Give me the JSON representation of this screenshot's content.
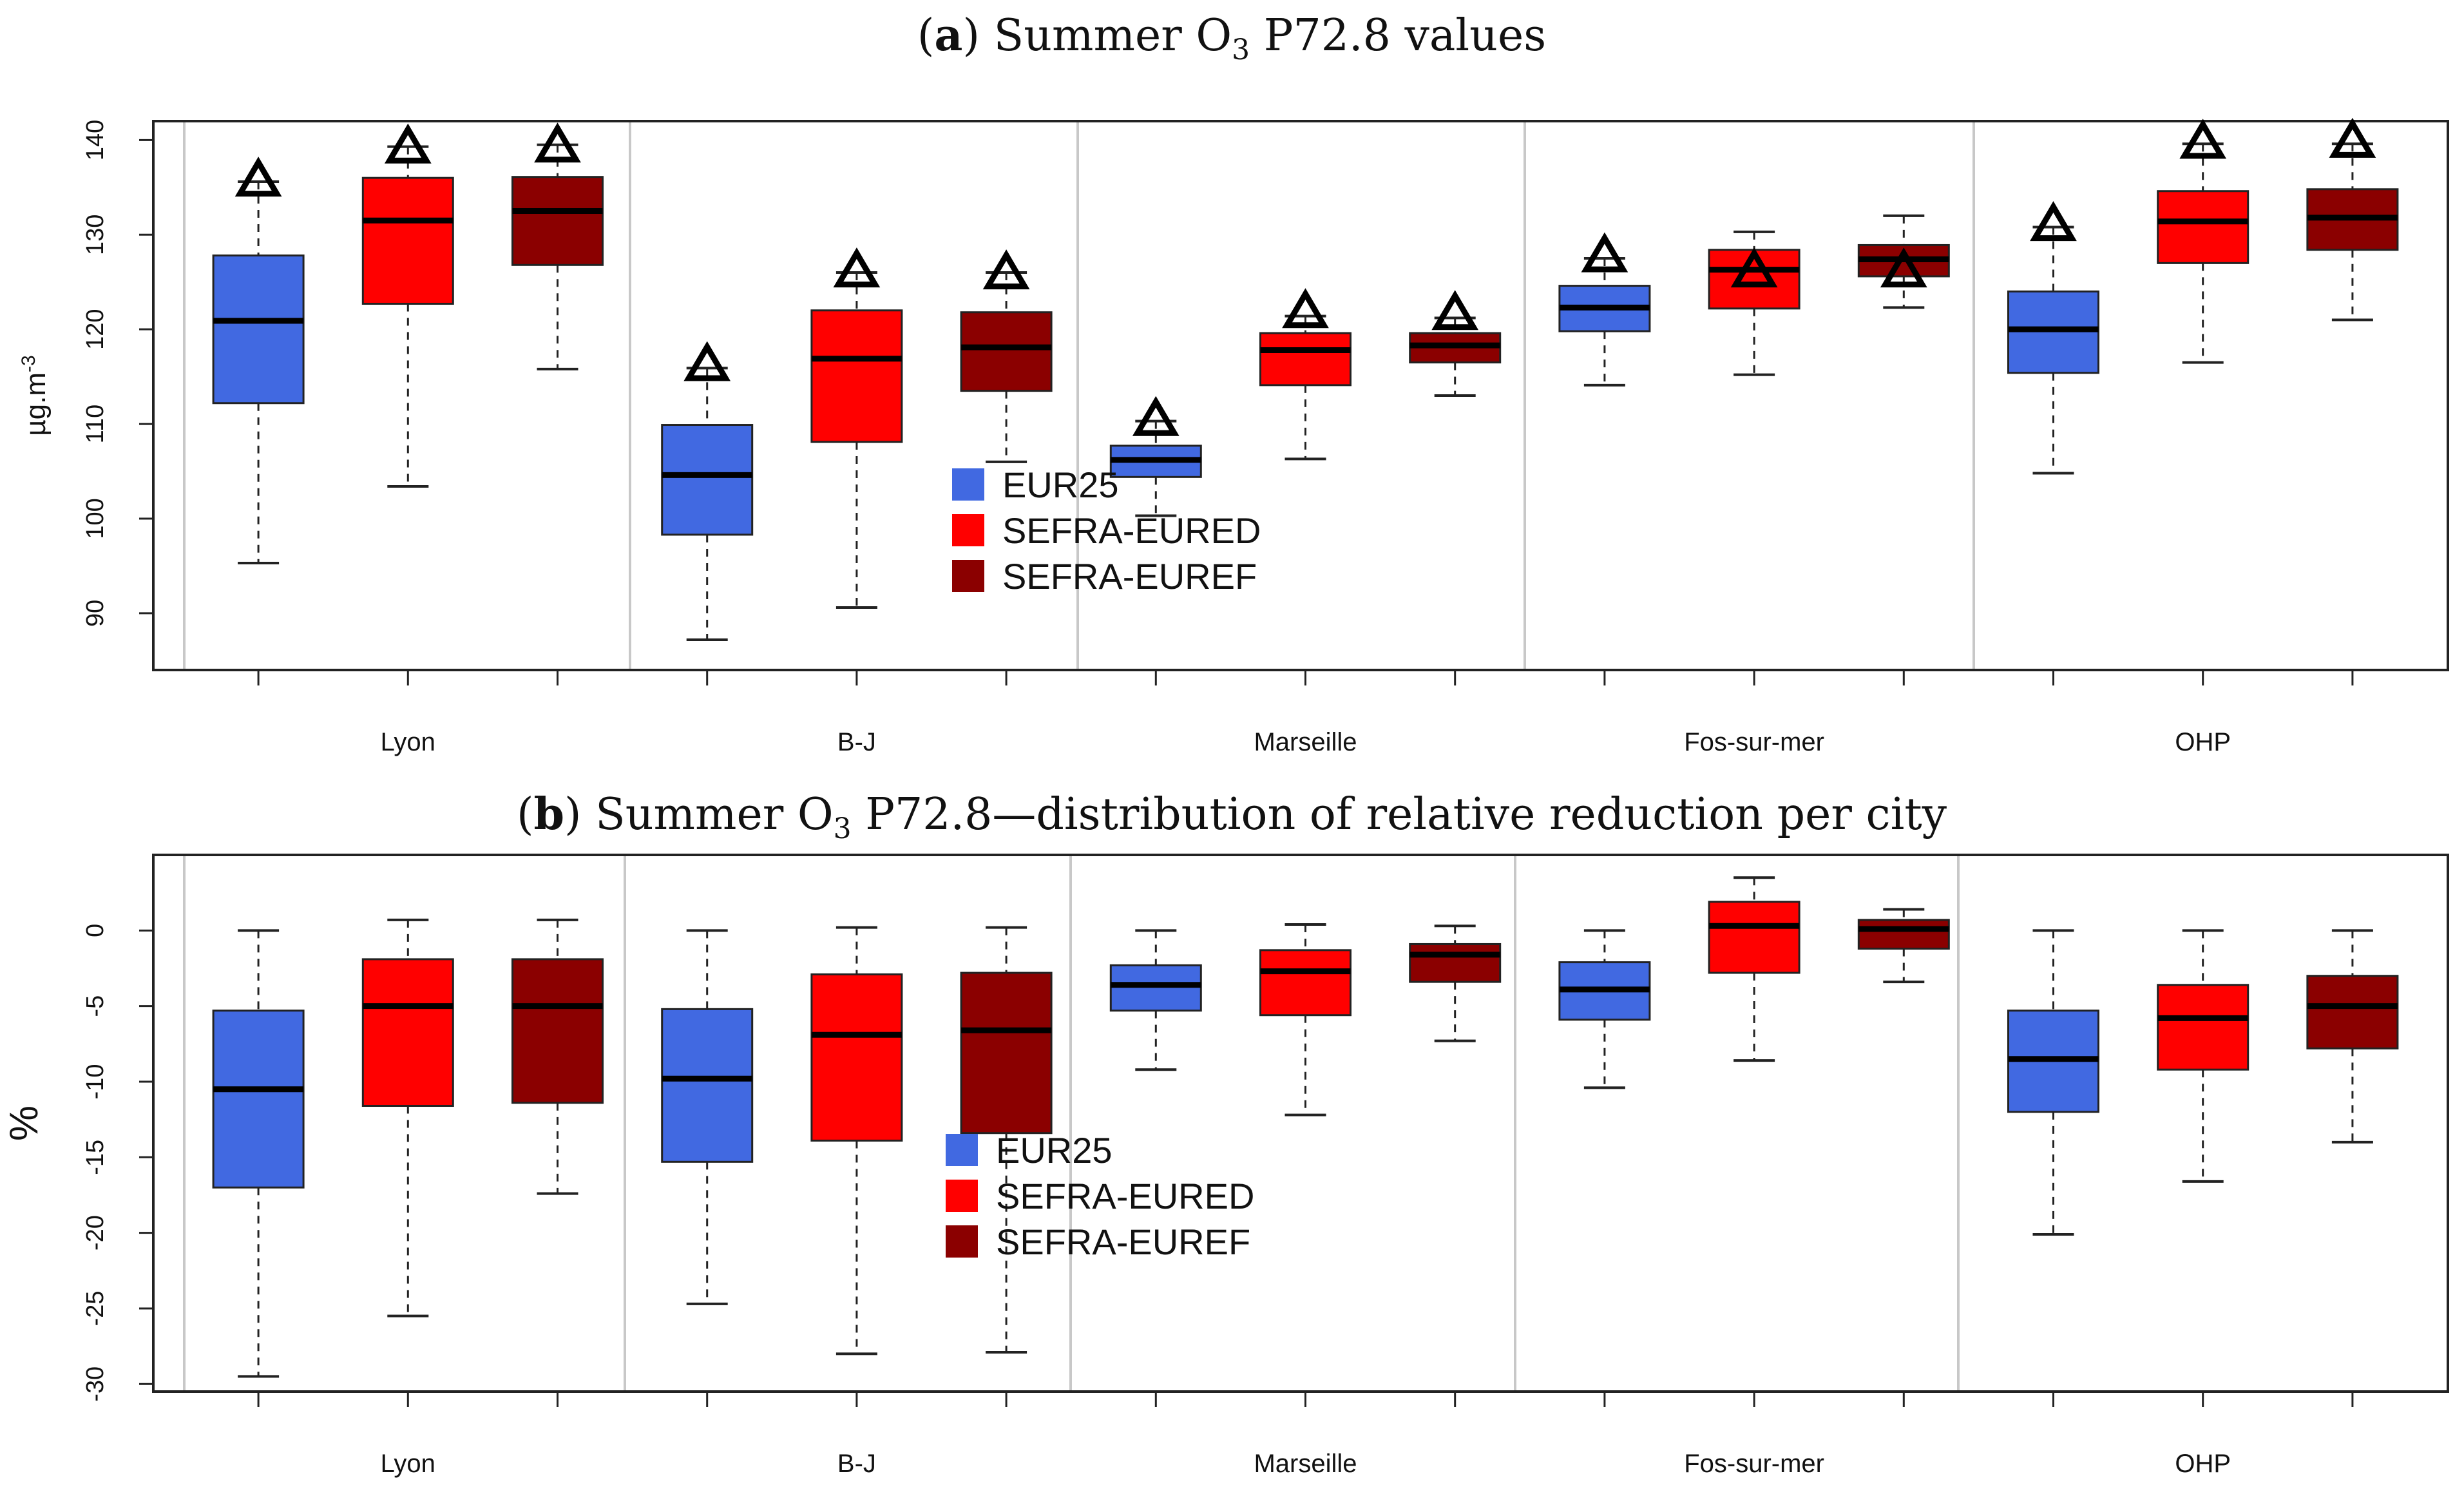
{
  "chart_data": [
    {
      "type": "boxplot",
      "title": {
        "bold": "a",
        "pre": "Summer O",
        "sub": "3",
        "post": " P72.8 values"
      },
      "ylabel": {
        "base": "µg.m",
        "sup": "-3"
      },
      "ylim": [
        84,
        142
      ],
      "yticks": [
        90,
        100,
        110,
        120,
        130,
        140
      ],
      "categories": [
        "Lyon",
        "B-J",
        "Marseille",
        "Fos-sur-mer",
        "OHP"
      ],
      "series": [
        {
          "name": "EUR25",
          "color": "#4169e1",
          "boxes": [
            {
              "min": 95.3,
              "q1": 112.2,
              "median": 120.9,
              "q3": 127.8,
              "max": 135.6,
              "obs": 135.6
            },
            {
              "min": 87.2,
              "q1": 98.3,
              "median": 104.6,
              "q3": 109.9,
              "max": 115.9,
              "obs": 116.1
            },
            {
              "min": 100.3,
              "q1": 104.4,
              "median": 106.2,
              "q3": 107.7,
              "max": 110.3,
              "obs": 110.3
            },
            {
              "min": 114.1,
              "q1": 119.8,
              "median": 122.3,
              "q3": 124.6,
              "max": 127.5,
              "obs": 127.6
            },
            {
              "min": 104.8,
              "q1": 115.4,
              "median": 120.0,
              "q3": 124.0,
              "max": 130.8,
              "obs": 130.9
            }
          ]
        },
        {
          "name": "SEFRA-EURED",
          "color": "#ff0000",
          "boxes": [
            {
              "min": 103.4,
              "q1": 122.7,
              "median": 131.5,
              "q3": 136.0,
              "max": 139.3,
              "obs": 139.1
            },
            {
              "min": 90.6,
              "q1": 108.1,
              "median": 116.9,
              "q3": 122.0,
              "max": 126.0,
              "obs": 126.0
            },
            {
              "min": 106.3,
              "q1": 114.1,
              "median": 117.8,
              "q3": 119.6,
              "max": 121.4,
              "obs": 121.7
            },
            {
              "min": 115.2,
              "q1": 122.2,
              "median": 126.3,
              "q3": 128.4,
              "max": 130.3,
              "obs": 126.0
            },
            {
              "min": 116.5,
              "q1": 127.0,
              "median": 131.4,
              "q3": 134.6,
              "max": 139.6,
              "obs": 139.6
            }
          ]
        },
        {
          "name": "SEFRA-EUREF",
          "color": "#8b0000",
          "boxes": [
            {
              "min": 115.8,
              "q1": 126.8,
              "median": 132.5,
              "q3": 136.1,
              "max": 139.5,
              "obs": 139.2
            },
            {
              "min": 106.0,
              "q1": 113.5,
              "median": 118.1,
              "q3": 121.8,
              "max": 126.0,
              "obs": 125.8
            },
            {
              "min": 113.0,
              "q1": 116.5,
              "median": 118.3,
              "q3": 119.6,
              "max": 121.2,
              "obs": 121.5
            },
            {
              "min": 122.3,
              "q1": 125.6,
              "median": 127.4,
              "q3": 128.9,
              "max": 132.0,
              "obs": 126.0
            },
            {
              "min": 121.0,
              "q1": 128.4,
              "median": 131.8,
              "q3": 134.8,
              "max": 139.6,
              "obs": 139.7
            }
          ]
        }
      ]
    },
    {
      "type": "boxplot",
      "title": {
        "bold": "b",
        "pre": "Summer O",
        "sub": "3",
        "post": " P72.8—distribution of relative reduction per city"
      },
      "ylabel": {
        "base": "%",
        "sup": ""
      },
      "ylim": [
        -30.5,
        5
      ],
      "yticks": [
        0,
        -5,
        -10,
        -15,
        -20,
        -25,
        -30
      ],
      "categories": [
        "Lyon",
        "B-J",
        "Marseille",
        "Fos-sur-mer",
        "OHP"
      ],
      "series": [
        {
          "name": "EUR25",
          "color": "#4169e1",
          "boxes": [
            {
              "min": -29.5,
              "q1": -17.0,
              "median": -10.5,
              "q3": -5.3,
              "max": 0.0
            },
            {
              "min": -24.7,
              "q1": -15.3,
              "median": -9.8,
              "q3": -5.2,
              "max": 0.0
            },
            {
              "min": -9.2,
              "q1": -5.3,
              "median": -3.6,
              "q3": -2.3,
              "max": 0.0
            },
            {
              "min": -10.4,
              "q1": -5.9,
              "median": -3.9,
              "q3": -2.1,
              "max": 0.0
            },
            {
              "min": -20.1,
              "q1": -12.0,
              "median": -8.5,
              "q3": -5.3,
              "max": 0.0
            }
          ]
        },
        {
          "name": "SEFRA-EURED",
          "color": "#ff0000",
          "boxes": [
            {
              "min": -25.5,
              "q1": -11.6,
              "median": -5.0,
              "q3": -1.9,
              "max": 0.7
            },
            {
              "min": -28.0,
              "q1": -13.9,
              "median": -6.9,
              "q3": -2.9,
              "max": 0.2
            },
            {
              "min": -12.2,
              "q1": -5.6,
              "median": -2.7,
              "q3": -1.3,
              "max": 0.4
            },
            {
              "min": -8.6,
              "q1": -2.8,
              "median": 0.3,
              "q3": 1.9,
              "max": 3.5
            },
            {
              "min": -16.6,
              "q1": -9.2,
              "median": -5.8,
              "q3": -3.6,
              "max": 0.0
            }
          ]
        },
        {
          "name": "SEFRA-EUREF",
          "color": "#8b0000",
          "boxes": [
            {
              "min": -17.4,
              "q1": -11.4,
              "median": -5.0,
              "q3": -1.9,
              "max": 0.7
            },
            {
              "min": -27.9,
              "q1": -13.4,
              "median": -6.6,
              "q3": -2.8,
              "max": 0.2
            },
            {
              "min": -7.3,
              "q1": -3.4,
              "median": -1.6,
              "q3": -0.9,
              "max": 0.3
            },
            {
              "min": -3.4,
              "q1": -1.2,
              "median": 0.1,
              "q3": 0.7,
              "max": 1.4
            },
            {
              "min": -14.0,
              "q1": -7.8,
              "median": -5.0,
              "q3": -3.0,
              "max": 0.0
            }
          ]
        }
      ]
    }
  ]
}
